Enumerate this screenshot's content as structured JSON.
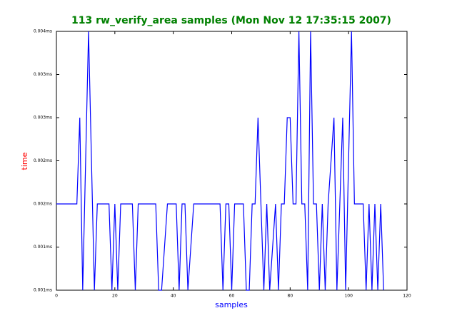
{
  "chart_data": {
    "type": "line",
    "title": "113 rw_verify_area samples (Mon Nov 12 17:35:15 2007)",
    "xlabel": "samples",
    "ylabel": "time",
    "x": [
      0,
      1,
      2,
      3,
      4,
      5,
      6,
      7,
      8,
      9,
      10,
      11,
      12,
      13,
      14,
      15,
      16,
      17,
      18,
      19,
      20,
      21,
      22,
      23,
      24,
      25,
      26,
      27,
      28,
      29,
      30,
      31,
      32,
      33,
      34,
      35,
      36,
      37,
      38,
      39,
      40,
      41,
      42,
      43,
      44,
      45,
      46,
      47,
      48,
      49,
      50,
      51,
      52,
      53,
      54,
      55,
      56,
      57,
      58,
      59,
      60,
      61,
      62,
      63,
      64,
      65,
      66,
      67,
      68,
      69,
      70,
      71,
      72,
      73,
      74,
      75,
      76,
      77,
      78,
      79,
      80,
      81,
      82,
      83,
      84,
      85,
      86,
      87,
      88,
      89,
      90,
      91,
      92,
      93,
      94,
      95,
      96,
      97,
      98,
      99,
      100,
      101,
      102,
      103,
      104,
      105,
      106,
      107,
      108,
      109,
      110,
      111,
      112
    ],
    "series": [
      {
        "name": "rw_verify_area",
        "color": "#0000ff",
        "values": [
          0.002,
          0.002,
          0.002,
          0.002,
          0.002,
          0.002,
          0.002,
          0.002,
          0.003,
          0.001,
          0.0025,
          0.004,
          0.0025,
          0.001,
          0.002,
          0.002,
          0.002,
          0.002,
          0.002,
          0.001,
          0.002,
          0.001,
          0.002,
          0.002,
          0.002,
          0.002,
          0.002,
          0.001,
          0.002,
          0.002,
          0.002,
          0.002,
          0.002,
          0.002,
          0.002,
          0.001,
          0.001,
          0.0015,
          0.002,
          0.002,
          0.002,
          0.002,
          0.001,
          0.002,
          0.002,
          0.001,
          0.0015,
          0.002,
          0.002,
          0.002,
          0.002,
          0.002,
          0.002,
          0.002,
          0.002,
          0.002,
          0.002,
          0.001,
          0.002,
          0.002,
          0.001,
          0.002,
          0.002,
          0.002,
          0.002,
          0.001,
          0.001,
          0.002,
          0.002,
          0.003,
          0.002,
          0.001,
          0.002,
          0.001,
          0.0015,
          0.002,
          0.001,
          0.002,
          0.002,
          0.003,
          0.003,
          0.002,
          0.002,
          0.004,
          0.002,
          0.002,
          0.001,
          0.004,
          0.002,
          0.002,
          0.001,
          0.002,
          0.001,
          0.002,
          0.0025,
          0.003,
          0.001,
          0.002,
          0.003,
          0.001,
          0.0025,
          0.004,
          0.002,
          0.002,
          0.002,
          0.002,
          0.001,
          0.002,
          0.001,
          0.002,
          0.001,
          0.002,
          0.001
        ]
      }
    ],
    "xlim": [
      0,
      120
    ],
    "xticks": [
      0,
      20,
      40,
      60,
      80,
      100,
      120
    ],
    "ylim": [
      0.001,
      0.004
    ],
    "yticks": [
      {
        "value": 0.001,
        "label": "0.001ms"
      },
      {
        "value": 0.0015,
        "label": "0.001ms"
      },
      {
        "value": 0.002,
        "label": "0.002ms"
      },
      {
        "value": 0.0025,
        "label": "0.002ms"
      },
      {
        "value": 0.003,
        "label": "0.003ms"
      },
      {
        "value": 0.0035,
        "label": "0.003ms"
      },
      {
        "value": 0.004,
        "label": "0.004ms"
      }
    ],
    "title_color": "#008000",
    "xlabel_color": "#0000ff",
    "ylabel_color": "#ff0000"
  }
}
